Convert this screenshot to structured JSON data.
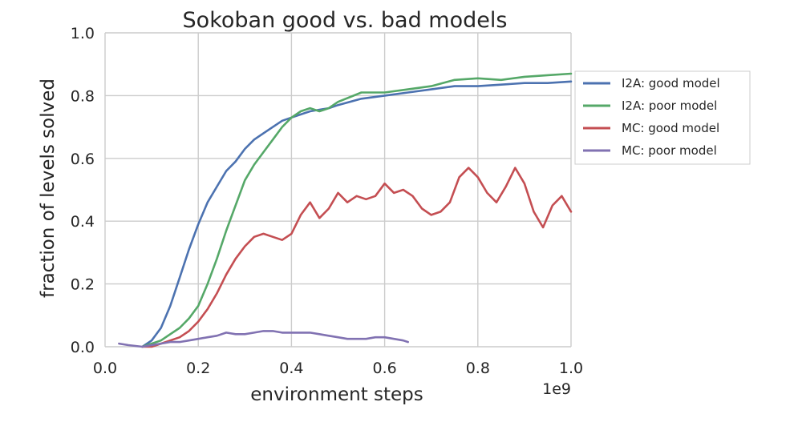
{
  "chart_data": {
    "type": "line",
    "title": "Sokoban good vs. bad models",
    "xlabel": "environment steps",
    "ylabel": "fraction of levels solved",
    "x_multiplier_label": "1e9",
    "xlim": [
      0.0,
      1.0
    ],
    "ylim": [
      0.0,
      1.0
    ],
    "xticks": [
      0.0,
      0.2,
      0.4,
      0.6,
      0.8,
      1.0
    ],
    "xtick_labels": [
      "0.0",
      "0.2",
      "0.4",
      "0.6",
      "0.8",
      "1.0"
    ],
    "yticks": [
      0.0,
      0.2,
      0.4,
      0.6,
      0.8,
      1.0
    ],
    "ytick_labels": [
      "0.0",
      "0.2",
      "0.4",
      "0.6",
      "0.8",
      "1.0"
    ],
    "grid": true,
    "legend_position": "outside-right",
    "series": [
      {
        "name": "I2A: good model",
        "color": "#4c72b0",
        "x": [
          0.08,
          0.1,
          0.12,
          0.14,
          0.16,
          0.18,
          0.2,
          0.22,
          0.24,
          0.26,
          0.28,
          0.3,
          0.32,
          0.34,
          0.36,
          0.38,
          0.4,
          0.42,
          0.44,
          0.46,
          0.48,
          0.5,
          0.55,
          0.6,
          0.65,
          0.7,
          0.75,
          0.8,
          0.85,
          0.9,
          0.95,
          1.0
        ],
        "y": [
          0.0,
          0.02,
          0.06,
          0.13,
          0.22,
          0.31,
          0.39,
          0.46,
          0.51,
          0.56,
          0.59,
          0.63,
          0.66,
          0.68,
          0.7,
          0.72,
          0.73,
          0.74,
          0.75,
          0.755,
          0.76,
          0.77,
          0.79,
          0.8,
          0.81,
          0.82,
          0.83,
          0.83,
          0.835,
          0.84,
          0.84,
          0.845
        ]
      },
      {
        "name": "I2A: poor model",
        "color": "#55a868",
        "x": [
          0.08,
          0.1,
          0.12,
          0.14,
          0.16,
          0.18,
          0.2,
          0.22,
          0.24,
          0.26,
          0.28,
          0.3,
          0.32,
          0.34,
          0.36,
          0.38,
          0.4,
          0.42,
          0.44,
          0.46,
          0.48,
          0.5,
          0.55,
          0.6,
          0.65,
          0.7,
          0.75,
          0.8,
          0.85,
          0.9,
          0.95,
          1.0
        ],
        "y": [
          0.0,
          0.01,
          0.02,
          0.04,
          0.06,
          0.09,
          0.13,
          0.2,
          0.28,
          0.37,
          0.45,
          0.53,
          0.58,
          0.62,
          0.66,
          0.7,
          0.73,
          0.75,
          0.76,
          0.75,
          0.76,
          0.78,
          0.81,
          0.81,
          0.82,
          0.83,
          0.85,
          0.855,
          0.85,
          0.86,
          0.865,
          0.87
        ]
      },
      {
        "name": "MC: good model",
        "color": "#c44e52",
        "x": [
          0.08,
          0.1,
          0.12,
          0.14,
          0.16,
          0.18,
          0.2,
          0.22,
          0.24,
          0.26,
          0.28,
          0.3,
          0.32,
          0.34,
          0.36,
          0.38,
          0.4,
          0.42,
          0.44,
          0.46,
          0.48,
          0.5,
          0.52,
          0.54,
          0.56,
          0.58,
          0.6,
          0.62,
          0.64,
          0.66,
          0.68,
          0.7,
          0.72,
          0.74,
          0.76,
          0.78,
          0.8,
          0.82,
          0.84,
          0.86,
          0.88,
          0.9,
          0.92,
          0.94,
          0.96,
          0.98,
          1.0
        ],
        "y": [
          0.0,
          0.0,
          0.01,
          0.02,
          0.03,
          0.05,
          0.08,
          0.12,
          0.17,
          0.23,
          0.28,
          0.32,
          0.35,
          0.36,
          0.35,
          0.34,
          0.36,
          0.42,
          0.46,
          0.41,
          0.44,
          0.49,
          0.46,
          0.48,
          0.47,
          0.48,
          0.52,
          0.49,
          0.5,
          0.48,
          0.44,
          0.42,
          0.43,
          0.46,
          0.54,
          0.57,
          0.54,
          0.49,
          0.46,
          0.51,
          0.57,
          0.52,
          0.43,
          0.38,
          0.45,
          0.48,
          0.43
        ]
      },
      {
        "name": "MC: poor model",
        "color": "#8172b2",
        "x": [
          0.03,
          0.05,
          0.08,
          0.1,
          0.12,
          0.14,
          0.16,
          0.18,
          0.2,
          0.22,
          0.24,
          0.26,
          0.28,
          0.3,
          0.32,
          0.34,
          0.36,
          0.38,
          0.4,
          0.42,
          0.44,
          0.46,
          0.48,
          0.5,
          0.52,
          0.54,
          0.56,
          0.58,
          0.6,
          0.62,
          0.64,
          0.65
        ],
        "y": [
          0.01,
          0.005,
          0.0,
          0.005,
          0.01,
          0.015,
          0.015,
          0.02,
          0.025,
          0.03,
          0.035,
          0.045,
          0.04,
          0.04,
          0.045,
          0.05,
          0.05,
          0.045,
          0.045,
          0.045,
          0.045,
          0.04,
          0.035,
          0.03,
          0.025,
          0.025,
          0.025,
          0.03,
          0.03,
          0.025,
          0.02,
          0.015
        ]
      }
    ]
  }
}
